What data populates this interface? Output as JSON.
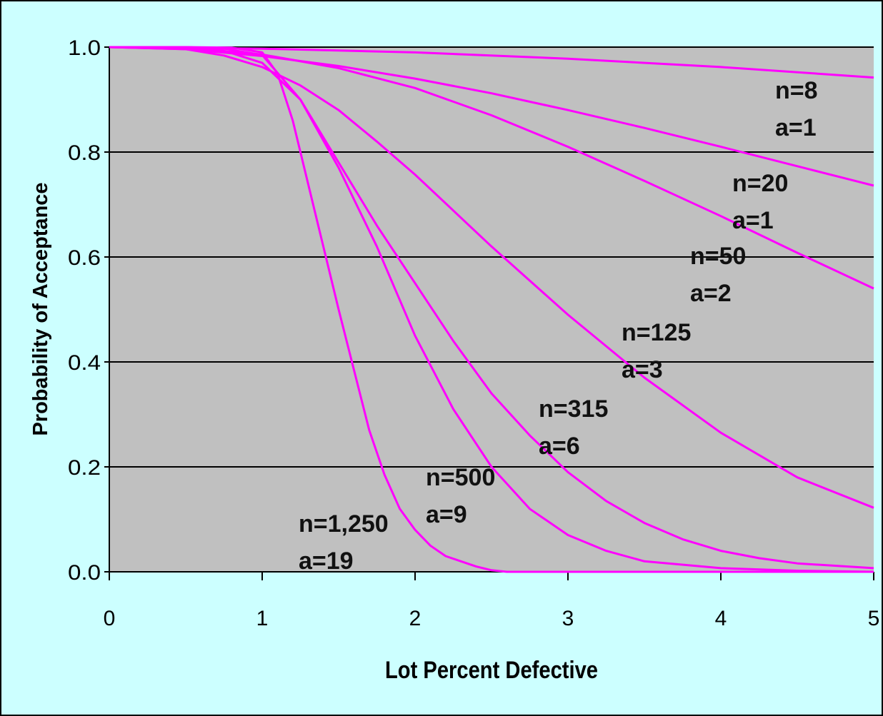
{
  "chart_data": {
    "type": "line",
    "xlabel": "Lot Percent Defective",
    "ylabel": "Probability of Acceptance",
    "xlim": [
      0,
      5
    ],
    "ylim": [
      0,
      1
    ],
    "x_ticks": [
      "0",
      "1",
      "2",
      "3",
      "4",
      "5"
    ],
    "y_ticks": [
      "0.0",
      "0.2",
      "0.4",
      "0.6",
      "0.8",
      "1.0"
    ],
    "grid": "horizontal",
    "line_color": "#ff00ff",
    "plot_background": "#c0c0c0",
    "figure_background": "#ccffff",
    "series": [
      {
        "name": "n=8 a=1",
        "label_lines": [
          "n=8",
          "a=1"
        ],
        "x": [
          0,
          1,
          2,
          3,
          4,
          5
        ],
        "y": [
          1.0,
          0.997,
          0.99,
          0.978,
          0.962,
          0.942
        ]
      },
      {
        "name": "n=20 a=1",
        "label_lines": [
          "n=20",
          "a=1"
        ],
        "x": [
          0,
          0.5,
          1,
          1.5,
          2,
          2.5,
          3,
          3.5,
          4,
          4.5,
          5
        ],
        "y": [
          1.0,
          0.996,
          0.983,
          0.964,
          0.94,
          0.912,
          0.88,
          0.846,
          0.81,
          0.773,
          0.736
        ]
      },
      {
        "name": "n=50 a=2",
        "label_lines": [
          "n=50",
          "a=2"
        ],
        "x": [
          0,
          0.5,
          1,
          1.5,
          2,
          2.5,
          3,
          3.5,
          4,
          4.5,
          5
        ],
        "y": [
          1.0,
          0.998,
          0.986,
          0.96,
          0.922,
          0.87,
          0.81,
          0.745,
          0.678,
          0.608,
          0.54
        ]
      },
      {
        "name": "n=125 a=3",
        "label_lines": [
          "n=125",
          "a=3"
        ],
        "x": [
          0,
          0.5,
          0.75,
          1,
          1.25,
          1.5,
          1.75,
          2,
          2.5,
          3,
          3.5,
          4,
          4.5,
          5
        ],
        "y": [
          1.0,
          0.996,
          0.984,
          0.962,
          0.927,
          0.88,
          0.82,
          0.757,
          0.62,
          0.49,
          0.37,
          0.265,
          0.18,
          0.122
        ]
      },
      {
        "name": "n=315 a=6",
        "label_lines": [
          "n=315",
          "a=6"
        ],
        "x": [
          0,
          0.5,
          0.75,
          1,
          1.25,
          1.5,
          1.75,
          2,
          2.25,
          2.5,
          2.75,
          3,
          3.25,
          3.5,
          3.75,
          4,
          4.25,
          4.5,
          5
        ],
        "y": [
          1.0,
          0.999,
          0.993,
          0.97,
          0.9,
          0.78,
          0.66,
          0.55,
          0.44,
          0.34,
          0.26,
          0.19,
          0.135,
          0.093,
          0.062,
          0.04,
          0.026,
          0.016,
          0.007
        ]
      },
      {
        "name": "n=500 a=9",
        "label_lines": [
          "n=500",
          "a=9"
        ],
        "x": [
          0,
          0.5,
          0.75,
          1,
          1.25,
          1.5,
          1.75,
          2,
          2.25,
          2.5,
          2.75,
          3,
          3.25,
          3.5,
          4,
          4.5,
          5
        ],
        "y": [
          1.0,
          1.0,
          0.997,
          0.985,
          0.9,
          0.77,
          0.62,
          0.45,
          0.31,
          0.2,
          0.12,
          0.07,
          0.04,
          0.02,
          0.007,
          0.002,
          0.0
        ]
      },
      {
        "name": "n=1,250 a=19",
        "label_lines": [
          "n=1,250",
          "a=19"
        ],
        "x": [
          0,
          0.5,
          0.8,
          1,
          1.1,
          1.2,
          1.3,
          1.4,
          1.5,
          1.6,
          1.7,
          1.8,
          1.9,
          2.0,
          2.1,
          2.2,
          2.3,
          2.4,
          2.5,
          2.6,
          3,
          4,
          5
        ],
        "y": [
          1.0,
          1.0,
          0.999,
          0.99,
          0.95,
          0.86,
          0.74,
          0.62,
          0.5,
          0.385,
          0.27,
          0.185,
          0.12,
          0.08,
          0.05,
          0.03,
          0.02,
          0.01,
          0.003,
          0.0,
          0.0,
          0.0,
          0.0
        ]
      }
    ]
  }
}
